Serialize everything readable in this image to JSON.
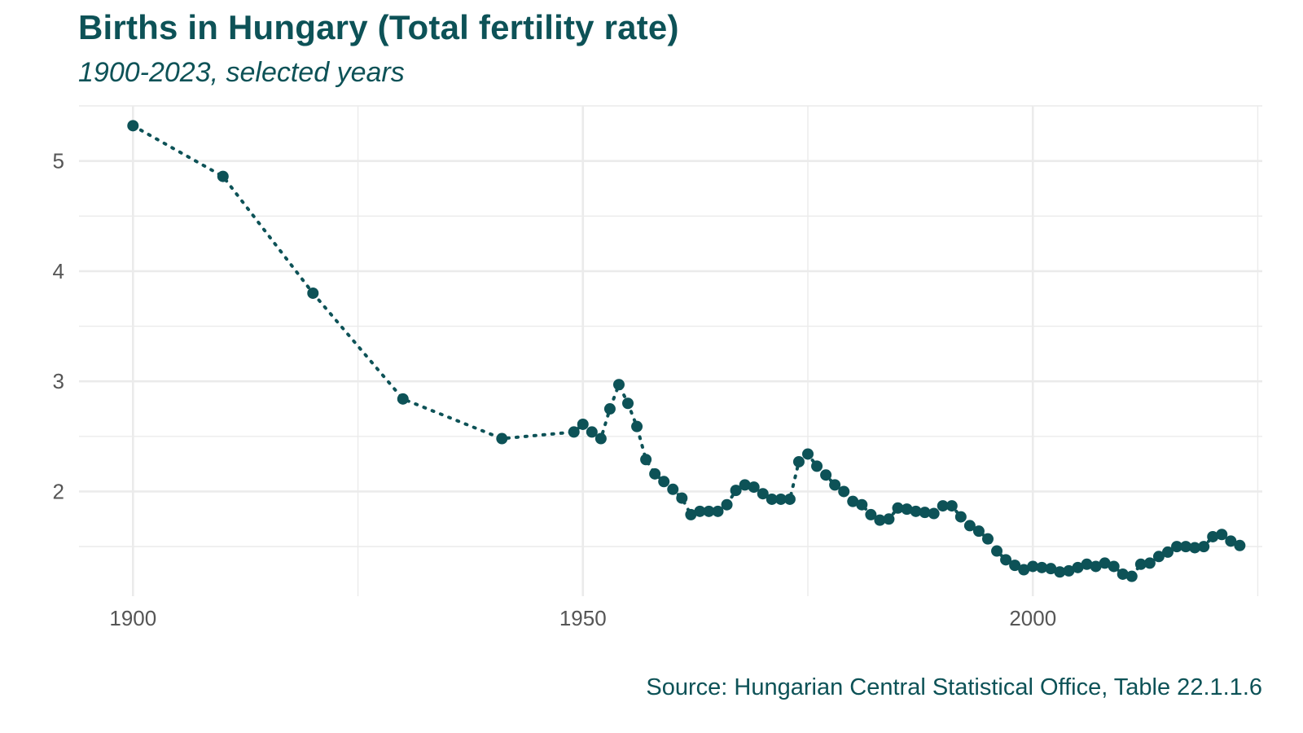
{
  "chart_data": {
    "type": "line",
    "title": "Births in Hungary (Total fertility rate)",
    "subtitle": "1900-2023, selected years",
    "caption": "Source: Hungarian Central Statistical Office, Table 22.1.1.6",
    "xlabel": "",
    "ylabel": "",
    "xlim": [
      1894,
      2025.5
    ],
    "ylim": [
      1.05,
      5.5
    ],
    "x_ticks": [
      1900,
      1950,
      2000
    ],
    "y_ticks": [
      2,
      3,
      4,
      5
    ],
    "grid": true,
    "line_style": "dotted",
    "color": "#0d5257",
    "series": [
      {
        "x": [
          1900,
          1910,
          1920,
          1930,
          1941,
          1949,
          1950,
          1951,
          1952,
          1953,
          1954,
          1955,
          1956,
          1957,
          1958,
          1959,
          1960,
          1961,
          1962,
          1963,
          1964,
          1965,
          1966,
          1967,
          1968,
          1969,
          1970,
          1971,
          1972,
          1973,
          1974,
          1975,
          1976,
          1977,
          1978,
          1979,
          1980,
          1981,
          1982,
          1983,
          1984,
          1985,
          1986,
          1987,
          1988,
          1989,
          1990,
          1991,
          1992,
          1993,
          1994,
          1995,
          1996,
          1997,
          1998,
          1999,
          2000,
          2001,
          2002,
          2003,
          2004,
          2005,
          2006,
          2007,
          2008,
          2009,
          2010,
          2011,
          2012,
          2013,
          2014,
          2015,
          2016,
          2017,
          2018,
          2019,
          2020,
          2021,
          2022,
          2023
        ],
        "y": [
          5.32,
          4.86,
          3.8,
          2.84,
          2.48,
          2.54,
          2.61,
          2.54,
          2.48,
          2.75,
          2.97,
          2.8,
          2.59,
          2.29,
          2.16,
          2.09,
          2.02,
          1.94,
          1.79,
          1.82,
          1.82,
          1.82,
          1.88,
          2.01,
          2.06,
          2.04,
          1.98,
          1.93,
          1.93,
          1.93,
          2.27,
          2.34,
          2.23,
          2.15,
          2.06,
          2.0,
          1.91,
          1.88,
          1.79,
          1.74,
          1.75,
          1.85,
          1.84,
          1.82,
          1.81,
          1.8,
          1.87,
          1.87,
          1.77,
          1.69,
          1.64,
          1.57,
          1.46,
          1.38,
          1.33,
          1.29,
          1.32,
          1.31,
          1.3,
          1.27,
          1.28,
          1.31,
          1.34,
          1.32,
          1.35,
          1.32,
          1.25,
          1.23,
          1.34,
          1.35,
          1.41,
          1.45,
          1.5,
          1.5,
          1.49,
          1.5,
          1.59,
          1.61,
          1.55,
          1.51
        ]
      }
    ]
  }
}
